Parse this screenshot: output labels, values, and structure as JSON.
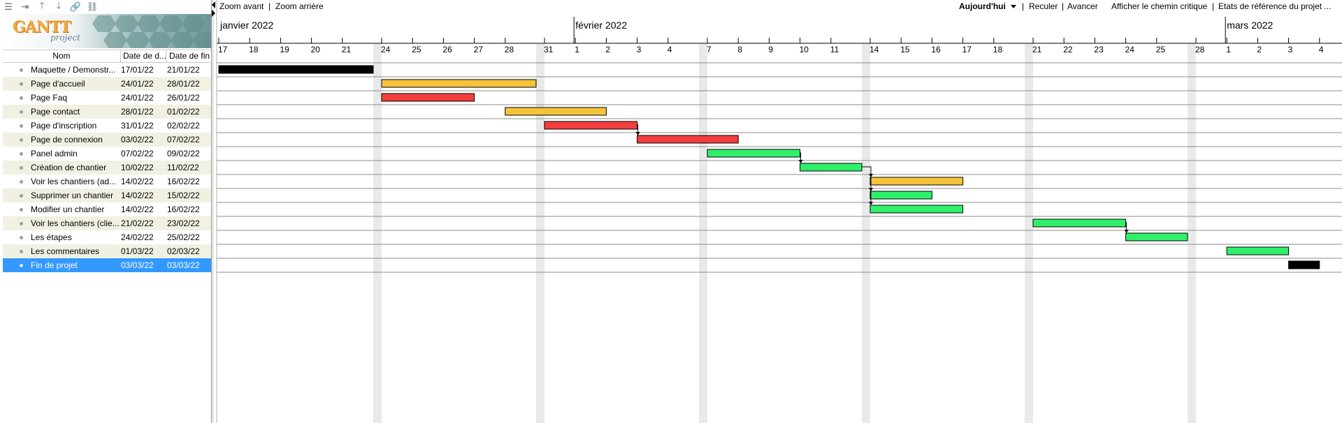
{
  "toolbar_left": {
    "icons": [
      "outdent-icon",
      "indent-icon",
      "move-up-icon",
      "move-down-icon",
      "link-icon",
      "unlink-icon"
    ]
  },
  "logo": {
    "title": "GANTT",
    "subtitle": "project"
  },
  "table": {
    "headers": {
      "name": "Nom",
      "start": "Date de d...",
      "end": "Date de fin"
    },
    "rows": [
      {
        "name": "Maquette / Demonstr...",
        "start": "17/01/22",
        "end": "21/01/22"
      },
      {
        "name": "Page d'accueil",
        "start": "24/01/22",
        "end": "28/01/22"
      },
      {
        "name": "Page Faq",
        "start": "24/01/22",
        "end": "26/01/22"
      },
      {
        "name": "Page contact",
        "start": "28/01/22",
        "end": "01/02/22"
      },
      {
        "name": "Page d'inscription",
        "start": "31/01/22",
        "end": "02/02/22"
      },
      {
        "name": "Page de connexion",
        "start": "03/02/22",
        "end": "07/02/22"
      },
      {
        "name": "Panel admin",
        "start": "07/02/22",
        "end": "09/02/22"
      },
      {
        "name": "Création de chantier",
        "start": "10/02/22",
        "end": "11/02/22"
      },
      {
        "name": "Voir les chantiers (ad...",
        "start": "14/02/22",
        "end": "16/02/22"
      },
      {
        "name": "Supprimer un chantier",
        "start": "14/02/22",
        "end": "15/02/22"
      },
      {
        "name": "Modifier un chantier",
        "start": "14/02/22",
        "end": "16/02/22"
      },
      {
        "name": "Voir les chantiers (clie...",
        "start": "21/02/22",
        "end": "23/02/22"
      },
      {
        "name": "Les étapes",
        "start": "24/02/22",
        "end": "25/02/22"
      },
      {
        "name": "Les commentaires",
        "start": "01/03/22",
        "end": "02/03/22"
      },
      {
        "name": "Fin de projet",
        "start": "03/03/22",
        "end": "03/03/22",
        "selected": true
      }
    ]
  },
  "chart_toolbar": {
    "zoom_in": "Zoom avant",
    "zoom_out": "Zoom arrière",
    "sep": "|",
    "today": "Aujourd'hui",
    "back": "Reculer",
    "forward": "Avancer",
    "critical_path": "Afficher le chemin critique",
    "baselines": "Etats de référence du projet ..."
  },
  "timeline": {
    "months": [
      {
        "label": "janvier 2022",
        "day_index": 0
      },
      {
        "label": "février 2022",
        "day_index": 15
      },
      {
        "label": "mars 2022",
        "day_index": 43
      }
    ],
    "days": [
      "17",
      "18",
      "19",
      "20",
      "21",
      "24",
      "25",
      "26",
      "27",
      "28",
      "31",
      "1",
      "2",
      "3",
      "4",
      "7",
      "8",
      "9",
      "10",
      "11",
      "14",
      "15",
      "16",
      "17",
      "18",
      "21",
      "22",
      "23",
      "24",
      "25",
      "28",
      "1",
      "2",
      "3",
      "4"
    ],
    "weekend_after_day_index": [
      4,
      9,
      14,
      19,
      24,
      29
    ]
  },
  "chart_data": {
    "type": "gantt",
    "start_date": "2022-01-17",
    "colors": {
      "black": "#000000",
      "orange": "#f6c33a",
      "red": "#f43d3d",
      "green": "#2ef06a"
    },
    "bars": [
      {
        "task": "Maquette / Demonstr...",
        "start": "2022-01-17",
        "end": "2022-01-21",
        "color": "black"
      },
      {
        "task": "Page d'accueil",
        "start": "2022-01-24",
        "end": "2022-01-28",
        "color": "orange"
      },
      {
        "task": "Page Faq",
        "start": "2022-01-24",
        "end": "2022-01-26",
        "color": "red"
      },
      {
        "task": "Page contact",
        "start": "2022-01-28",
        "end": "2022-02-01",
        "color": "orange"
      },
      {
        "task": "Page d'inscription",
        "start": "2022-01-31",
        "end": "2022-02-02",
        "color": "red"
      },
      {
        "task": "Page de connexion",
        "start": "2022-02-03",
        "end": "2022-02-07",
        "color": "red"
      },
      {
        "task": "Panel admin",
        "start": "2022-02-07",
        "end": "2022-02-09",
        "color": "green"
      },
      {
        "task": "Création de chantier",
        "start": "2022-02-10",
        "end": "2022-02-11",
        "color": "green"
      },
      {
        "task": "Voir les chantiers (ad...",
        "start": "2022-02-14",
        "end": "2022-02-16",
        "color": "orange"
      },
      {
        "task": "Supprimer un chantier",
        "start": "2022-02-14",
        "end": "2022-02-15",
        "color": "green"
      },
      {
        "task": "Modifier un chantier",
        "start": "2022-02-14",
        "end": "2022-02-16",
        "color": "green"
      },
      {
        "task": "Voir les chantiers (clie...",
        "start": "2022-02-21",
        "end": "2022-02-23",
        "color": "green"
      },
      {
        "task": "Les étapes",
        "start": "2022-02-24",
        "end": "2022-02-25",
        "color": "green"
      },
      {
        "task": "Les commentaires",
        "start": "2022-03-01",
        "end": "2022-03-02",
        "color": "green"
      },
      {
        "task": "Fin de projet",
        "start": "2022-03-03",
        "end": "2022-03-03",
        "color": "black"
      }
    ],
    "dependencies": [
      {
        "from": 4,
        "to": 5
      },
      {
        "from": 6,
        "to": 7
      },
      {
        "from": 7,
        "to": 8
      },
      {
        "from": 7,
        "to": 9
      },
      {
        "from": 7,
        "to": 10
      },
      {
        "from": 11,
        "to": 12
      }
    ]
  }
}
